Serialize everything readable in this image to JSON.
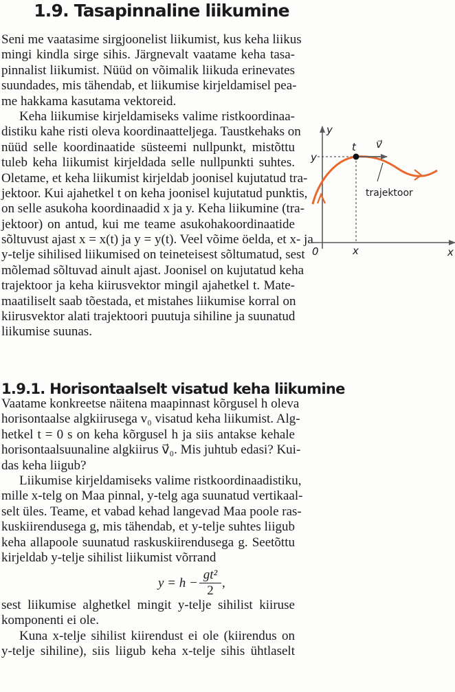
{
  "section": {
    "title": "1.9. Tasapinnaline liikumine",
    "paragraphs": [
      {
        "indent": false,
        "lines": [
          "Seni me vaatasime sirgjoonelist liikumist, kus keha liikus",
          "mingi kindla sirge sihis. Järgnevalt vaatame keha tasa-",
          "pinnalist liikumist. Nüüd on võimalik liikuda erinevates",
          "suundades, mis tähendab, et liikumise kirjeldamisel pea-",
          "me hakkama kasutama vektoreid."
        ]
      },
      {
        "indent": true,
        "lines": [
          "Keha liikumise kirjeldamiseks valime ristkoordinaa-",
          "distiku kahe risti oleva koordinaatteljega. Taustkehaks on",
          "nüüd selle koordinaatide süsteemi nullpunkt, mistõttu",
          "tuleb keha liikumist kirjeldada selle nullpunkti suhtes.",
          "Oletame, et keha liikumist kirjeldab joonisel kujutatud tra-",
          "jektoor. Kui ajahetkel t on keha joonisel kujutatud punktis,",
          "on selle asukoha koordinaadid x ja y. Keha liikumine (tra-",
          "jektoor) on antud, kui me teame asukohakoordinaatide",
          "sõltuvust ajast x = x(t) ja y = y(t). Veel võime öelda, et x- ja",
          "y-telje sihilised liikumised on teineteisest sõltumatud, sest",
          "mõlemad sõltuvad ainult ajast. Joonisel on kujutatud keha",
          "trajektoor ja keha kiirusvektor mingil ajahetkel t. Mate-",
          "maatiliselt saab tõestada, et mistahes liikumise korral on",
          "kiirusvektor alati trajektoori puutuja sihiline ja suunatud",
          "liikumise suunas."
        ]
      }
    ]
  },
  "figure": {
    "axis_y_label": "y",
    "axis_x_label": "x",
    "origin_label": "0",
    "point_y_label": "y",
    "point_x_label": "x",
    "time_label": "t",
    "velocity_label": "v⃗",
    "trajectory_label": "trajektoor",
    "trajectory_color": "#e8672b",
    "axis_color": "#5a5a5a"
  },
  "subsection": {
    "title": "1.9.1. Horisontaalselt visatud keha liikumine",
    "paragraphs_before": [
      {
        "indent": false,
        "lines": [
          "Vaatame konkreetse näitena maapinnast kõrgusel h oleva",
          "horisontaalse algkiirusega v₀ visatud keha liikumist. Alg-",
          "hetkel t = 0 s on keha kõrgusel h ja siis antakse kehale",
          "horisontaalsuunaline algkiirus v⃗₀. Mis juhtub edasi? Kui-",
          "das keha liigub?"
        ]
      },
      {
        "indent": true,
        "lines": [
          "Liikumise kirjeldamiseks valime ristkoordinaadistiku,",
          "mille x-telg on Maa pinnal, y-telg aga suunatud vertikaal-",
          "selt üles. Teame, et vabad kehad langevad Maa poole ras-",
          "kuskiirendusega g, mis tähendab, et y-telje suhtes liigub",
          "keha allapoole suunatud raskuskiirendusega g. Seetõttu",
          "kirjeldab y-telje sihilist liikumist võrrand"
        ]
      }
    ],
    "equation": {
      "lhs": "y = h −",
      "numerator": "gt²",
      "denominator": "2",
      "trail": ","
    },
    "paragraphs_after": [
      {
        "indent": false,
        "lines": [
          "sest liikumise alghetkel mingit y-telje sihilist kiiruse",
          "komponenti ei ole."
        ]
      },
      {
        "indent": true,
        "lines": [
          "Kuna x-telje sihilist kiirendust ei ole (kiirendus on",
          "y-telje sihiline), siis liigub keha x-telje sihis ühtlaselt"
        ],
        "continues": true
      }
    ]
  }
}
